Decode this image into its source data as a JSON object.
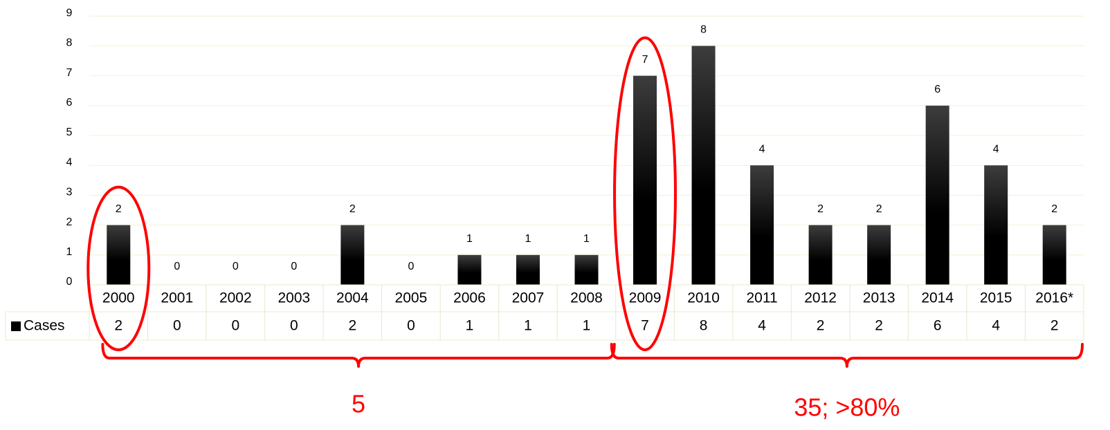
{
  "chart_data": {
    "type": "bar",
    "title": "",
    "xlabel": "",
    "ylabel": "",
    "ylim": [
      0,
      9
    ],
    "yticks": [
      "0",
      "1",
      "2",
      "3",
      "4",
      "5",
      "6",
      "7",
      "8",
      "9"
    ],
    "categories": [
      "2000",
      "2001",
      "2002",
      "2003",
      "2004",
      "2005",
      "2006",
      "2007",
      "2008",
      "2009",
      "2010",
      "2011",
      "2012",
      "2013",
      "2014",
      "2015",
      "2016*"
    ],
    "series": [
      {
        "name": "Cases",
        "values": [
          2,
          0,
          0,
          0,
          2,
          0,
          1,
          1,
          1,
          7,
          8,
          4,
          2,
          2,
          6,
          4,
          2
        ]
      }
    ],
    "grid": true,
    "legend": "data-table-left",
    "data_table": true,
    "highlighted_categories": [
      "2000",
      "2009"
    ],
    "annotations": [
      "5",
      "35; >80%"
    ]
  },
  "colors": {
    "bar_dark": "#000000",
    "bar_light": "#3d3d3d",
    "gridline": "#f2f2d2",
    "highlight": "#ff0000",
    "table_border": "#e8e8c8"
  }
}
